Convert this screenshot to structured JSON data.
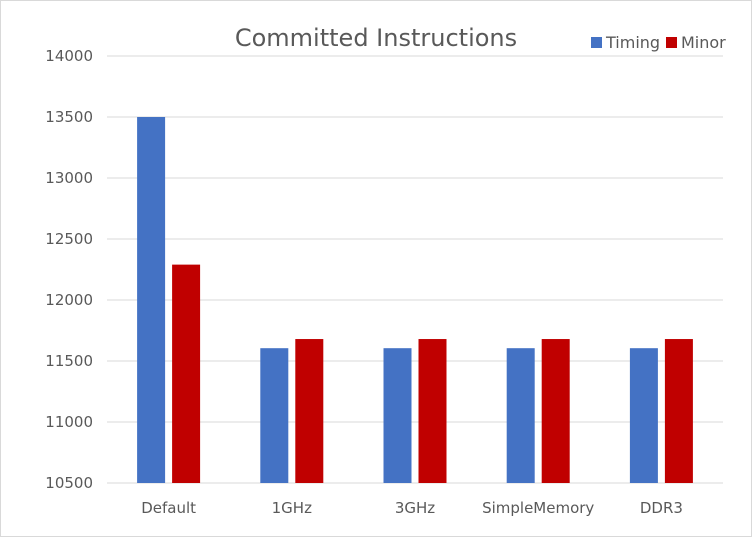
{
  "chart_data": {
    "type": "bar",
    "title": "Committed Instructions",
    "xlabel": "",
    "ylabel": "",
    "categories": [
      "Default",
      "1GHz",
      "3GHz",
      "SimpleMemory",
      "DDR3"
    ],
    "series": [
      {
        "name": "Timing",
        "color": "#4472c4",
        "values": [
          13500,
          11605,
          11605,
          11605,
          11605
        ]
      },
      {
        "name": "Minor",
        "color": "#c00000",
        "values": [
          12290,
          11680,
          11680,
          11680,
          11680
        ]
      }
    ],
    "ylim": [
      10500,
      14000
    ],
    "yticks": [
      "10500",
      "11000",
      "11500",
      "12000",
      "12500",
      "13000",
      "13500",
      "14000"
    ],
    "grid": true,
    "legend_position": "top-right"
  }
}
